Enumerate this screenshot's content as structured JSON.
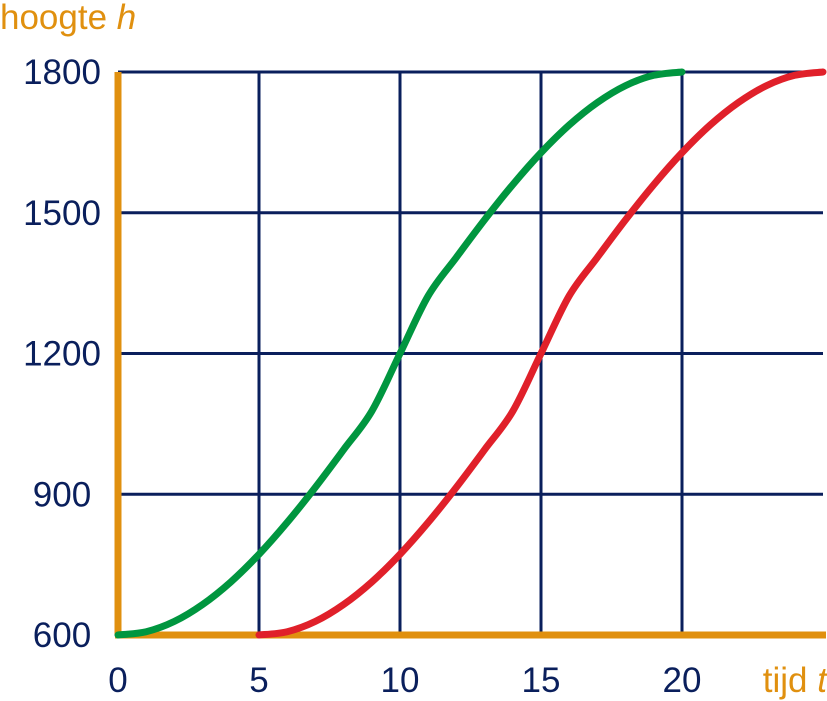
{
  "chart_data": {
    "type": "line",
    "ylabel": "hoogte",
    "ylabel_var": "h",
    "xlabel": "tijd",
    "xlabel_var": "t",
    "xlim": [
      0,
      25
    ],
    "ylim": [
      600,
      1800
    ],
    "xticks": [
      0,
      5,
      10,
      15,
      20
    ],
    "xtick_labels": [
      "0",
      "5",
      "10",
      "15",
      "20"
    ],
    "yticks": [
      600,
      900,
      1200,
      1500,
      1800
    ],
    "ytick_labels": [
      "600",
      "900",
      "1200",
      "1500",
      "1800"
    ],
    "grid": true,
    "series": [
      {
        "color": "#00963f",
        "x": [
          0,
          1,
          2,
          3,
          4,
          5,
          6,
          7,
          8,
          9,
          10,
          11,
          12,
          13,
          14,
          15,
          16,
          17,
          18,
          19,
          20
        ],
        "y": [
          600,
          607,
          629,
          665,
          713,
          772,
          840,
          915,
          995,
          1077,
          1200,
          1323,
          1405,
          1485,
          1560,
          1628,
          1687,
          1735,
          1771,
          1793,
          1800
        ]
      },
      {
        "color": "#e0202a",
        "x": [
          5,
          6,
          7,
          8,
          9,
          10,
          11,
          12,
          13,
          14,
          15,
          16,
          17,
          18,
          19,
          20,
          21,
          22,
          23,
          24,
          25
        ],
        "y": [
          600,
          607,
          629,
          665,
          713,
          772,
          840,
          915,
          995,
          1077,
          1200,
          1323,
          1405,
          1485,
          1560,
          1628,
          1687,
          1735,
          1771,
          1793,
          1800
        ]
      }
    ],
    "colors": {
      "axis": "#e0900f",
      "grid": "#0a1f5c",
      "tick_text": "#0a1f5c",
      "axis_title": "#e0900f"
    }
  }
}
